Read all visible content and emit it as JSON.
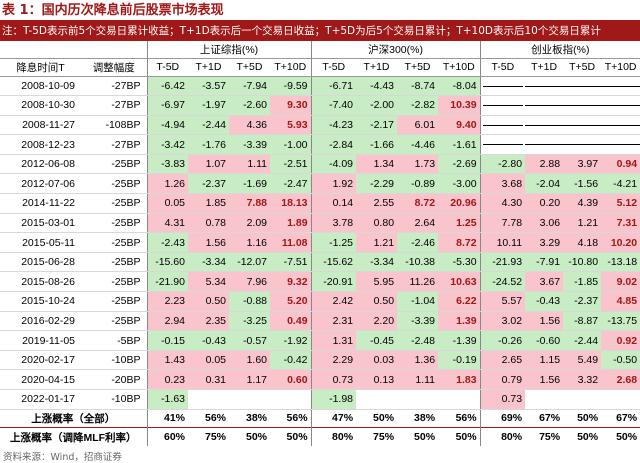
{
  "title": "表 1：国内历次降息前后股票市场表现",
  "note": "注：T-5D表示前5个交易日累计收益；T+1D表示后一个交易日收益；T+5D为后5个交易日累计；T+10D表示后10个交易日累计",
  "groups": [
    "上证综指(%)",
    "沪深300(%)",
    "创业板指(%)"
  ],
  "col_date": "降息时间T",
  "col_bp": "调整幅度",
  "subcols": [
    "T-5D",
    "T+1D",
    "T+5D",
    "T+10D"
  ],
  "rows": [
    {
      "date": "2008-10-09",
      "bp": "-27BP",
      "v": [
        "-6.42",
        "-3.57",
        "-7.94",
        "-9.59",
        "-6.71",
        "-4.43",
        "-8.74",
        "-8.04",
        null,
        null,
        null,
        null
      ]
    },
    {
      "date": "2008-10-30",
      "bp": "-27BP",
      "v": [
        "-6.97",
        "-1.97",
        "-2.60",
        "9.30",
        "-7.40",
        "-2.00",
        "-2.82",
        "10.39",
        null,
        null,
        null,
        null
      ]
    },
    {
      "date": "2008-11-27",
      "bp": "-108BP",
      "v": [
        "-4.94",
        "-2.44",
        "4.36",
        "5.93",
        "-4.23",
        "-2.17",
        "6.01",
        "9.40",
        null,
        null,
        null,
        null
      ]
    },
    {
      "date": "2008-12-23",
      "bp": "-27BP",
      "v": [
        "-3.42",
        "-1.76",
        "-3.39",
        "-1.00",
        "-2.84",
        "-1.66",
        "-4.46",
        "-1.61",
        null,
        null,
        null,
        null
      ]
    },
    {
      "date": "2012-06-08",
      "bp": "-25BP",
      "v": [
        "-3.83",
        "1.07",
        "1.11",
        "-2.51",
        "-4.09",
        "1.34",
        "1.73",
        "-2.69",
        "-2.80",
        "2.88",
        "3.97",
        "0.94"
      ]
    },
    {
      "date": "2012-07-06",
      "bp": "-25BP",
      "v": [
        "1.26",
        "-2.37",
        "-1.69",
        "-2.47",
        "1.92",
        "-2.29",
        "-0.89",
        "-3.00",
        "3.68",
        "-2.04",
        "-1.56",
        "-4.21"
      ]
    },
    {
      "date": "2014-11-22",
      "bp": "-25BP",
      "v": [
        "0.05",
        "1.85",
        "7.88",
        "18.13",
        "0.14",
        "2.55",
        "8.72",
        "20.96",
        "4.30",
        "0.20",
        "4.39",
        "5.12"
      ]
    },
    {
      "date": "2015-03-01",
      "bp": "-25BP",
      "v": [
        "4.31",
        "0.78",
        "2.09",
        "1.89",
        "3.78",
        "0.80",
        "2.64",
        "1.25",
        "7.78",
        "3.06",
        "1.21",
        "7.31"
      ]
    },
    {
      "date": "2015-05-11",
      "bp": "-25BP",
      "v": [
        "-2.43",
        "1.56",
        "1.16",
        "11.08",
        "-1.25",
        "1.21",
        "-2.46",
        "8.72",
        "10.11",
        "3.29",
        "4.18",
        "10.20"
      ]
    },
    {
      "date": "2015-06-28",
      "bp": "-25BP",
      "v": [
        "-15.60",
        "-3.34",
        "-12.07",
        "-7.51",
        "-15.62",
        "-3.34",
        "-10.38",
        "-5.30",
        "-21.93",
        "-7.91",
        "-10.80",
        "-13.18"
      ]
    },
    {
      "date": "2015-08-26",
      "bp": "-25BP",
      "v": [
        "-21.90",
        "5.34",
        "7.96",
        "9.32",
        "-20.91",
        "5.95",
        "11.26",
        "10.63",
        "-24.52",
        "3.67",
        "-1.85",
        "9.02"
      ]
    },
    {
      "date": "2015-10-24",
      "bp": "-25BP",
      "v": [
        "2.23",
        "0.50",
        "-0.88",
        "5.20",
        "2.42",
        "0.50",
        "-1.04",
        "6.22",
        "5.57",
        "-0.43",
        "-2.37",
        "4.85"
      ]
    },
    {
      "date": "2016-02-29",
      "bp": "-25BP",
      "v": [
        "2.94",
        "2.35",
        "-3.25",
        "0.49",
        "2.31",
        "2.20",
        "-3.39",
        "1.39",
        "3.02",
        "1.56",
        "-8.87",
        "-13.75"
      ]
    },
    {
      "date": "2019-11-05",
      "bp": "-5BP",
      "v": [
        "-0.15",
        "-0.43",
        "-0.57",
        "-1.92",
        "1.31",
        "-0.45",
        "-2.48",
        "-1.39",
        "-0.26",
        "-0.60",
        "-2.44",
        "0.92"
      ]
    },
    {
      "date": "2020-02-17",
      "bp": "-10BP",
      "v": [
        "1.43",
        "0.05",
        "1.60",
        "-0.42",
        "2.29",
        "0.03",
        "1.36",
        "-0.19",
        "2.65",
        "1.15",
        "5.49",
        "-0.50"
      ]
    },
    {
      "date": "2020-04-15",
      "bp": "-20BP",
      "v": [
        "0.23",
        "0.31",
        "1.17",
        "0.60",
        "0.73",
        "0.13",
        "1.11",
        "1.83",
        "0.79",
        "1.56",
        "3.32",
        "2.68"
      ]
    },
    {
      "date": "2022-01-17",
      "bp": "-10BP",
      "v": [
        "-1.63",
        null,
        null,
        null,
        "-1.98",
        null,
        null,
        null,
        "0.73",
        null,
        null,
        null
      ]
    }
  ],
  "summary": [
    {
      "label": "上涨概率（全部）",
      "v": [
        "41%",
        "56%",
        "38%",
        "56%",
        "47%",
        "50%",
        "38%",
        "56%",
        "69%",
        "67%",
        "50%",
        "67%"
      ]
    },
    {
      "label": "上涨概率（调降MLF利率）",
      "v": [
        "60%",
        "75%",
        "50%",
        "50%",
        "80%",
        "75%",
        "50%",
        "50%",
        "80%",
        "75%",
        "50%",
        "50%"
      ]
    }
  ],
  "source": "资料来源：Wind，招商证券",
  "colors": {
    "accent": "#a01818",
    "positive": "#f9c4cc",
    "negative": "#c8ecc4"
  }
}
